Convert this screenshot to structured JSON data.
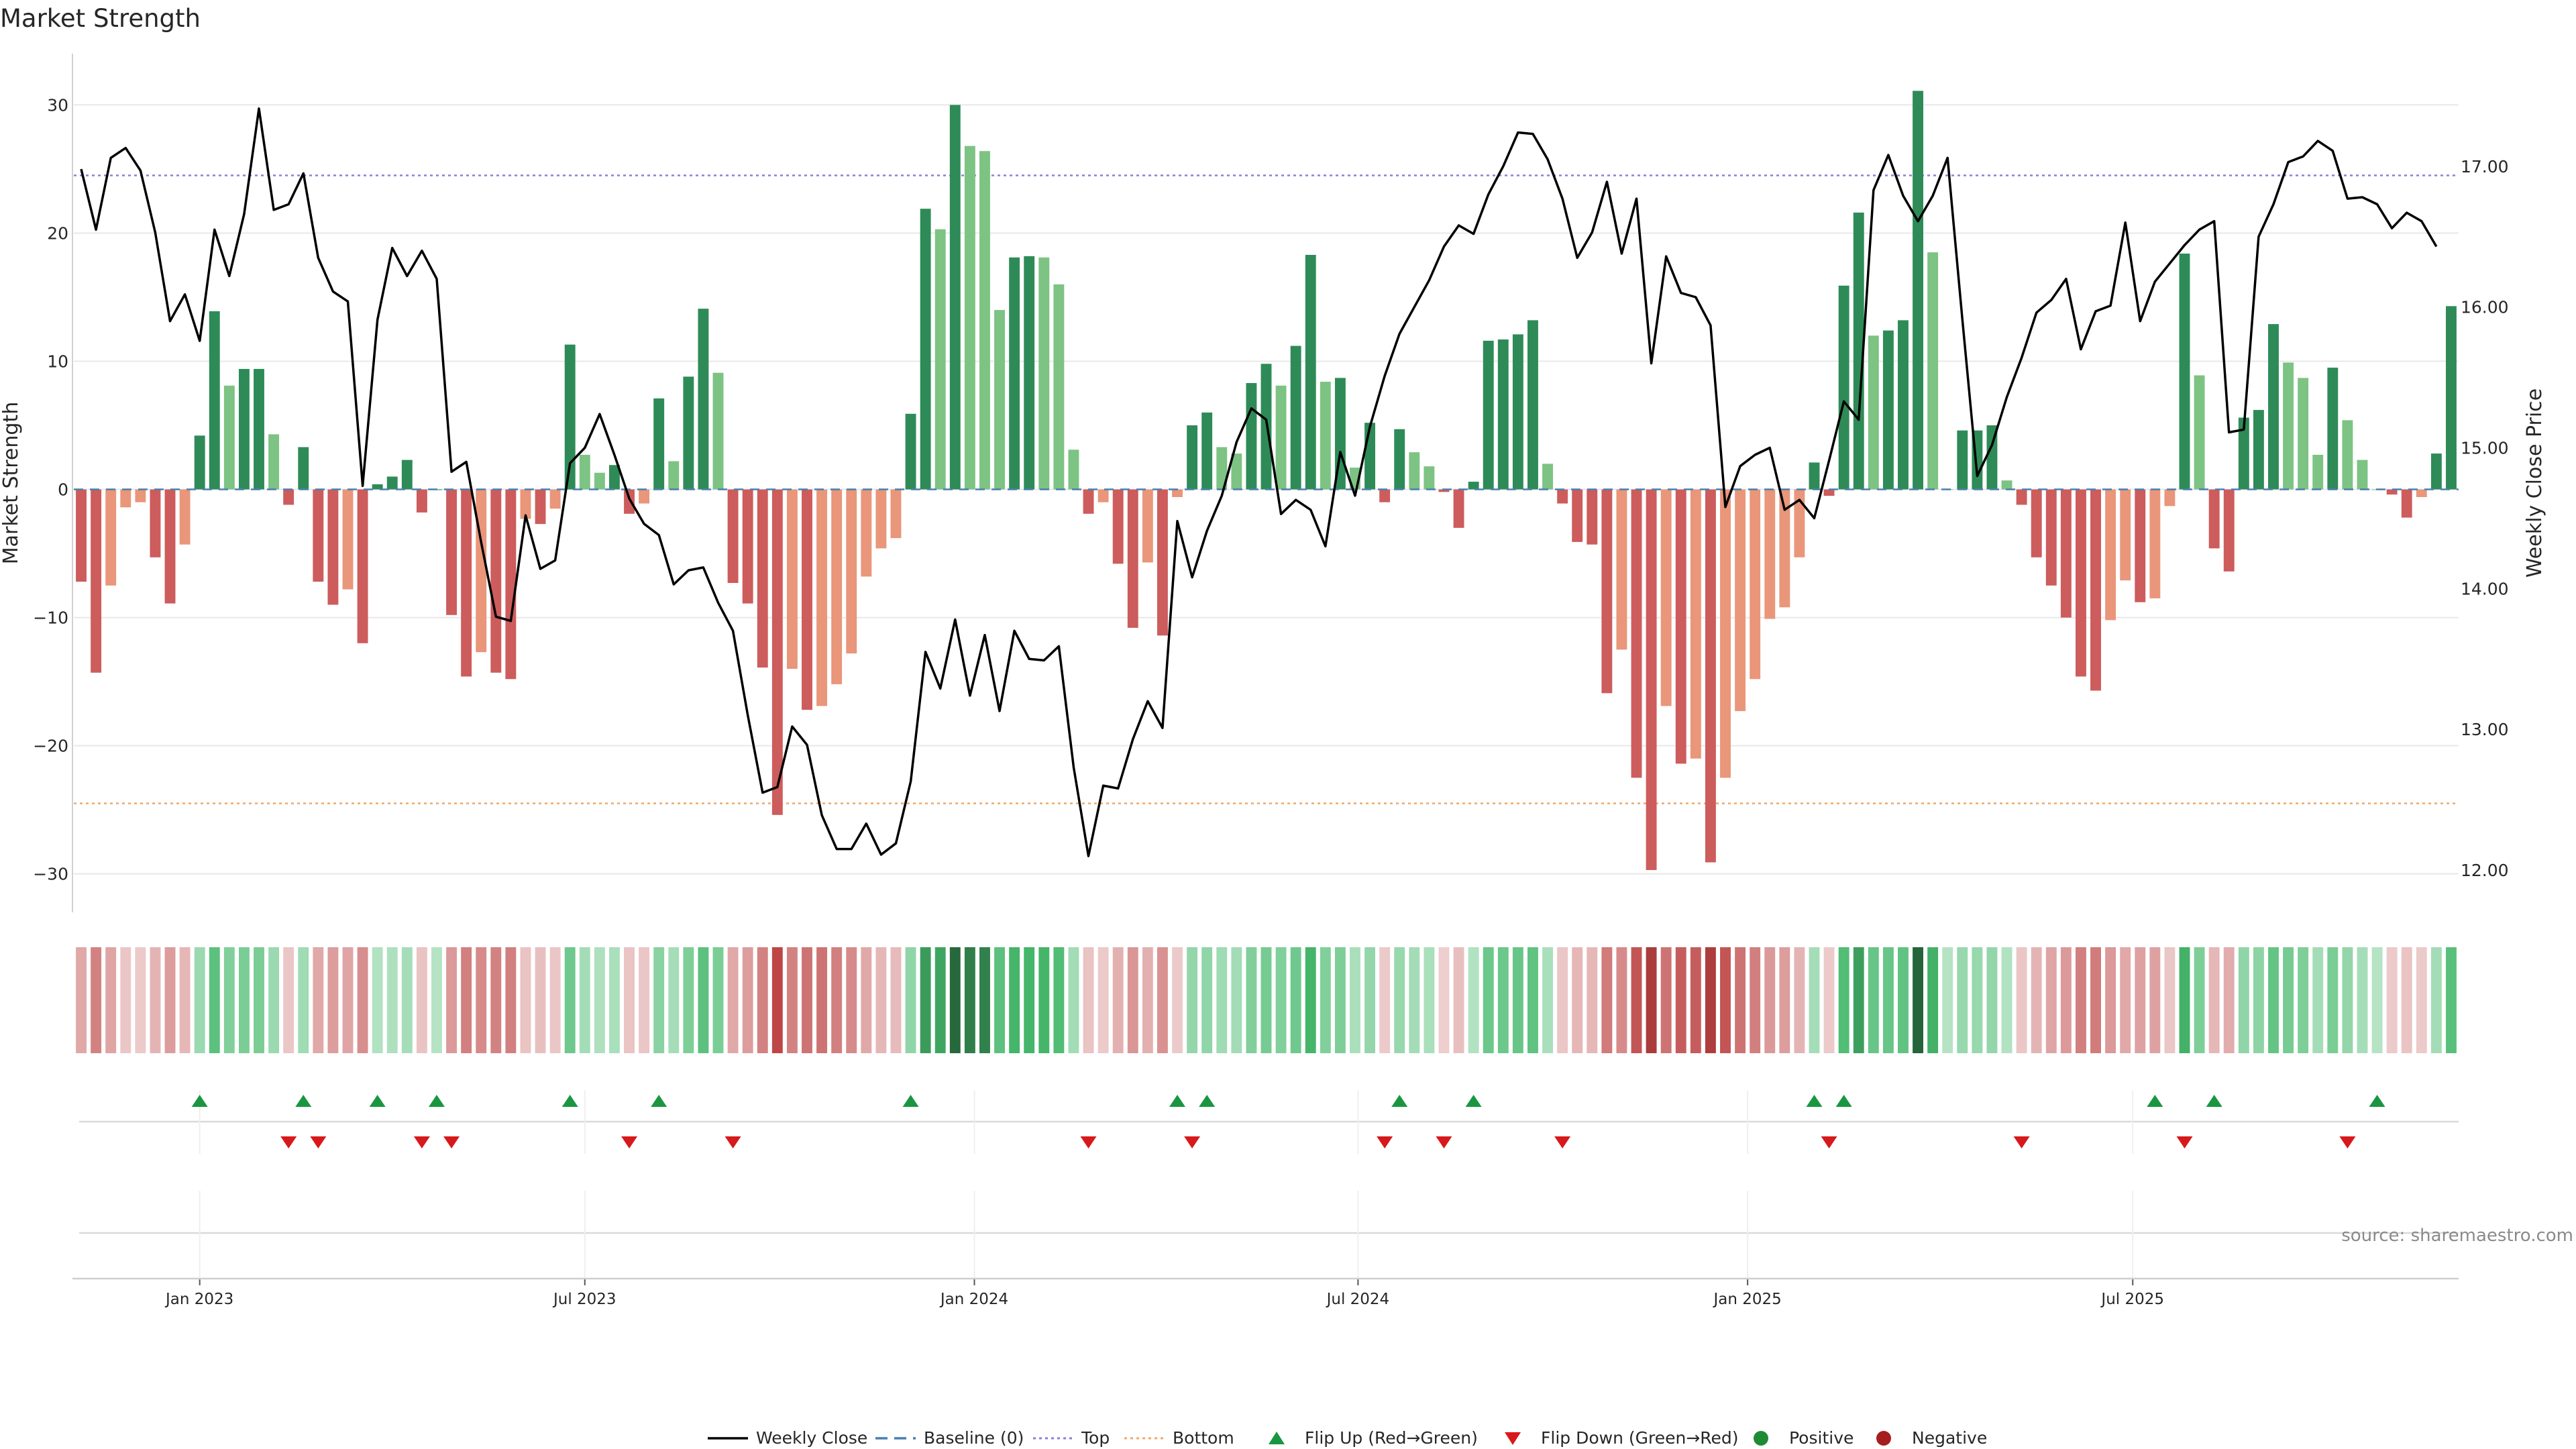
{
  "chart_data": {
    "type": "bar+line",
    "title": "Market Strength",
    "ylabel_left": "Market Strength",
    "ylabel_right": "Weekly Close Price",
    "source": "source: sharemaestro.com",
    "ylim_left": [
      -33,
      34
    ],
    "yticks_left": [
      {
        "v": 30,
        "label": "30"
      },
      {
        "v": 20,
        "label": "20"
      },
      {
        "v": 10,
        "label": "10"
      },
      {
        "v": 0,
        "label": "0"
      },
      {
        "v": -10,
        "label": "−10"
      },
      {
        "v": -20,
        "label": "−20"
      },
      {
        "v": -30,
        "label": "−30"
      }
    ],
    "ylim_right": [
      11.7,
      17.8
    ],
    "yticks_right": [
      {
        "v": 17,
        "label": "17.00"
      },
      {
        "v": 16,
        "label": "16.00"
      },
      {
        "v": 15,
        "label": "15.00"
      },
      {
        "v": 14,
        "label": "14.00"
      },
      {
        "v": 13,
        "label": "13.00"
      },
      {
        "v": 12,
        "label": "12.00"
      }
    ],
    "top_level": 24.5,
    "bottom_level": -24.5,
    "x_months": [
      {
        "label": "Jan 2023",
        "week": 8.5
      },
      {
        "label": "Jul 2023",
        "week": 34.5
      },
      {
        "label": "Jan 2024",
        "week": 60.8
      },
      {
        "label": "Jul 2024",
        "week": 86.7
      },
      {
        "label": "Jan 2025",
        "week": 113
      },
      {
        "label": "Jul 2025",
        "week": 139
      }
    ],
    "strength": [
      -7.2,
      -14.3,
      -7.5,
      -1.4,
      -1,
      -5.3,
      -8.9,
      -4.3,
      4.2,
      13.9,
      8.1,
      9.4,
      9.4,
      4.3,
      -1.2,
      3.3,
      -7.2,
      -9,
      -7.8,
      -12,
      0.4,
      1,
      2.3,
      -1.8,
      0,
      -9.8,
      -14.6,
      -12.7,
      -14.3,
      -14.8,
      -2.3,
      -2.7,
      -1.5,
      11.3,
      2.7,
      1.3,
      1.9,
      -1.9,
      -1.1,
      7.1,
      2.2,
      8.8,
      14.1,
      9.1,
      -7.3,
      -8.9,
      -13.9,
      -25.4,
      -14,
      -17.2,
      -16.9,
      -15.2,
      -12.8,
      -6.8,
      -4.6,
      -3.8,
      5.9,
      21.9,
      20.3,
      30,
      26.8,
      26.4,
      14,
      18.1,
      18.2,
      18.1,
      16,
      3.1,
      -1.9,
      -1,
      -5.8,
      -10.8,
      -5.7,
      -11.4,
      -0.6,
      5,
      6,
      3.3,
      2.8,
      8.3,
      9.8,
      8.1,
      11.2,
      18.3,
      8.4,
      8.7,
      1.7,
      5.2,
      -1,
      4.7,
      2.9,
      1.8,
      -0.2,
      -3,
      0.6,
      11.6,
      11.7,
      12.1,
      13.2,
      2,
      -1.1,
      -4.1,
      -4.3,
      -15.9,
      -12.5,
      -22.5,
      -29.7,
      -16.9,
      -21.4,
      -21,
      -29.1,
      -22.5,
      -17.3,
      -14.8,
      -10.1,
      -9.2,
      -5.3,
      2.1,
      -0.5,
      15.9,
      21.6,
      12,
      12.4,
      13.2,
      31.1,
      18.5,
      0,
      4.6,
      4.6,
      5,
      0.7,
      -1.2,
      -5.3,
      -7.5,
      -10,
      -14.6,
      -15.7,
      -10.2,
      -7.1,
      -8.8,
      -8.5,
      -1.3,
      18.4,
      8.9,
      -4.6,
      -6.4,
      5.6,
      6.2,
      12.9,
      9.9,
      8.7,
      2.7,
      9.5,
      5.4,
      2.3,
      0,
      -0.4,
      -2.2,
      -0.6,
      2.8,
      14.3
    ],
    "weekly_close": [
      16.98,
      16.55,
      17.06,
      17.13,
      16.97,
      16.53,
      15.9,
      16.09,
      15.76,
      16.55,
      16.22,
      16.66,
      17.41,
      16.69,
      16.73,
      16.95,
      16.35,
      16.11,
      16.04,
      14.73,
      15.91,
      16.42,
      16.22,
      16.4,
      16.2,
      14.83,
      14.9,
      14.33,
      13.8,
      13.77,
      14.52,
      14.14,
      14.2,
      14.89,
      15,
      15.24,
      14.95,
      14.64,
      14.46,
      14.38,
      14.03,
      14.13,
      14.15,
      13.9,
      13.7,
      13.1,
      12.55,
      12.59,
      13.02,
      12.89,
      12.39,
      12.15,
      12.15,
      12.33,
      12.11,
      12.19,
      12.63,
      13.55,
      13.29,
      13.78,
      13.24,
      13.67,
      13.13,
      13.7,
      13.5,
      13.49,
      13.59,
      12.73,
      12.1,
      12.6,
      12.58,
      12.93,
      13.2,
      13.01,
      14.48,
      14.08,
      14.41,
      14.66,
      15.04,
      15.28,
      15.2,
      14.53,
      14.63,
      14.56,
      14.3,
      14.97,
      14.66,
      15.15,
      15.51,
      15.81,
      16,
      16.19,
      16.43,
      16.58,
      16.52,
      16.8,
      17,
      17.24,
      17.23,
      17.05,
      16.77,
      16.35,
      16.53,
      16.89,
      16.38,
      16.77,
      15.6,
      16.36,
      16.1,
      16.07,
      15.87,
      14.58,
      14.87,
      14.95,
      15,
      14.56,
      14.63,
      14.5,
      14.91,
      15.33,
      15.2,
      16.83,
      17.08,
      16.79,
      16.61,
      16.79,
      17.06,
      15.91,
      14.8,
      15.02,
      15.36,
      15.64,
      15.96,
      16.05,
      16.2,
      15.7,
      15.97,
      16.01,
      16.6,
      15.9,
      16.18,
      16.31,
      16.44,
      16.55,
      16.61,
      15.11,
      15.13,
      16.5,
      16.73,
      17.03,
      17.07,
      17.18,
      17.11,
      16.77,
      16.78,
      16.73,
      16.56,
      16.67,
      16.61,
      16.43
    ],
    "flip_up_weeks": [
      8,
      15,
      20,
      24,
      33,
      39,
      56,
      74,
      76,
      89,
      94,
      117,
      119,
      140,
      144,
      155
    ],
    "flip_down_weeks": [
      14,
      16,
      23,
      25,
      37,
      44,
      68,
      75,
      88,
      92,
      100,
      118,
      131,
      142,
      153
    ],
    "colors": {
      "pos_strong": "#2e8b57",
      "pos_light": "#7dc383",
      "neg_strong": "#cd5c5c",
      "neg_light": "#e9967a",
      "flip_up": "#1a9641",
      "flip_down": "#d7191c",
      "top_line": "#8a7fd8",
      "bottom_line": "#f0a868",
      "baseline": "#4a7fb0",
      "close_line": "#000000"
    },
    "legend": [
      {
        "label": "Weekly Close",
        "kind": "line"
      },
      {
        "label": "Baseline (0)",
        "kind": "dash"
      },
      {
        "label": "Top",
        "kind": "dotted-purple"
      },
      {
        "label": "Bottom",
        "kind": "dotted-orange"
      },
      {
        "label": "Flip Up (Red→Green)",
        "kind": "tri-up"
      },
      {
        "label": "Flip Down (Green→Red)",
        "kind": "tri-down"
      },
      {
        "label": "Positive",
        "kind": "dot-green"
      },
      {
        "label": "Negative",
        "kind": "dot-red"
      }
    ]
  }
}
